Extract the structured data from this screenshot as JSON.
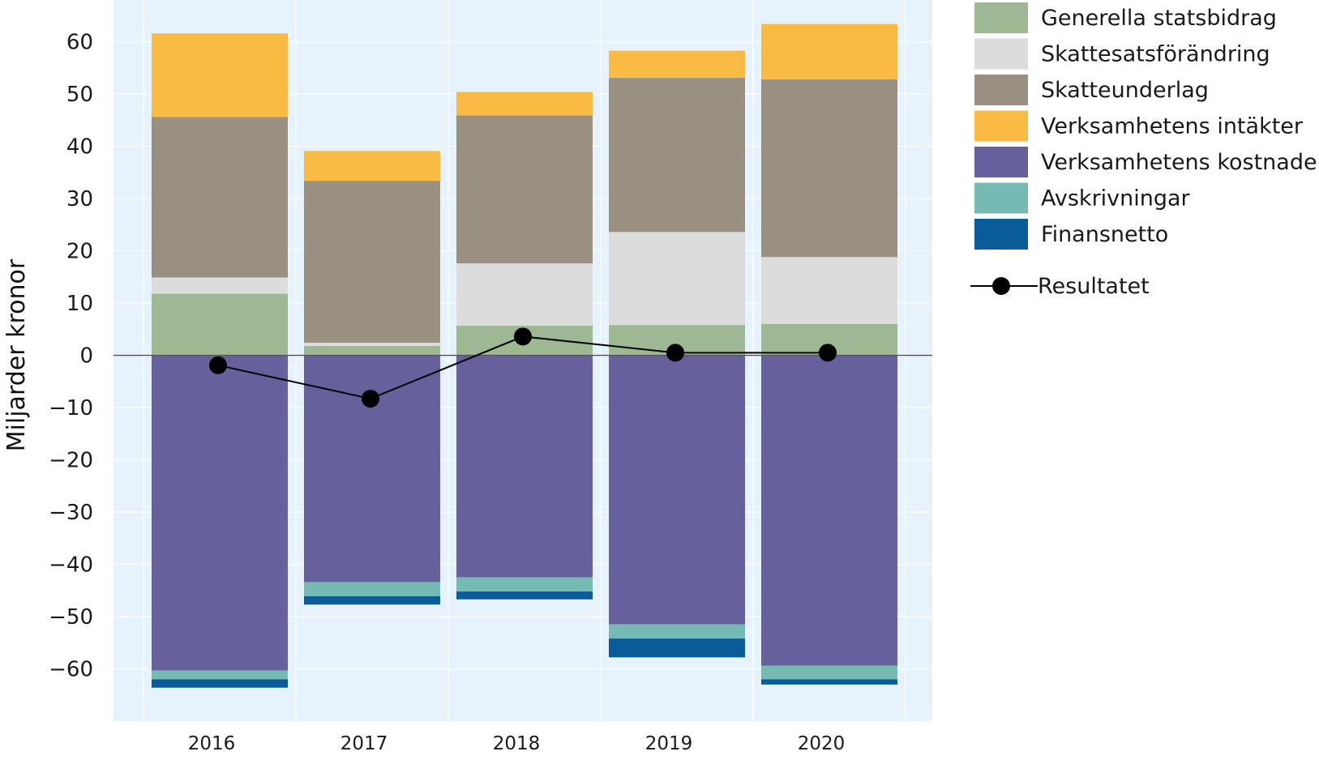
{
  "chart_data": {
    "type": "bar",
    "stacked": true,
    "categories": [
      "2016",
      "2017",
      "2018",
      "2019",
      "2020"
    ],
    "ylabel": "Miljarder kronor",
    "xlabel": "",
    "title": "",
    "ylim": [
      -70,
      68
    ],
    "yticks": [
      60,
      50,
      40,
      30,
      20,
      10,
      0,
      -10,
      -20,
      -30,
      -40,
      -50,
      -60
    ],
    "ytick_labels": [
      "60",
      "50",
      "40",
      "30",
      "20",
      "10",
      "0",
      "−10",
      "−20",
      "−30",
      "−40",
      "−50",
      "−60"
    ],
    "grid": true,
    "legend_position": "right",
    "series": [
      {
        "name": "Generella statsbidrag",
        "color": "#9db893",
        "values": [
          11.8,
          1.8,
          5.7,
          5.8,
          6.0
        ]
      },
      {
        "name": "Skattesatsförändring",
        "color": "#dcdcdc",
        "values": [
          3.1,
          0.6,
          11.9,
          17.8,
          12.8
        ]
      },
      {
        "name": "Skatteunderlag",
        "color": "#9a9082",
        "values": [
          30.7,
          31.0,
          28.3,
          29.5,
          34.0
        ]
      },
      {
        "name": "Verksamhetens intäkter",
        "color": "#f9bb43",
        "values": [
          16.0,
          5.7,
          4.5,
          5.2,
          10.6
        ]
      },
      {
        "name": "Verksamhetens kostnader",
        "color": "#66609c",
        "values": [
          -60.3,
          -43.4,
          -42.5,
          -51.5,
          -59.4
        ]
      },
      {
        "name": "Avskrivningar",
        "color": "#76bbb3",
        "values": [
          -1.7,
          -2.7,
          -2.7,
          -2.7,
          -2.6
        ]
      },
      {
        "name": "Finansnetto",
        "color": "#0a5c99",
        "values": [
          -1.6,
          -1.6,
          -1.5,
          -3.6,
          -1.0
        ]
      }
    ],
    "line_series": {
      "name": "Resultatet",
      "color": "#000000",
      "values": [
        -1.9,
        -8.3,
        3.6,
        0.5,
        0.5
      ]
    }
  }
}
